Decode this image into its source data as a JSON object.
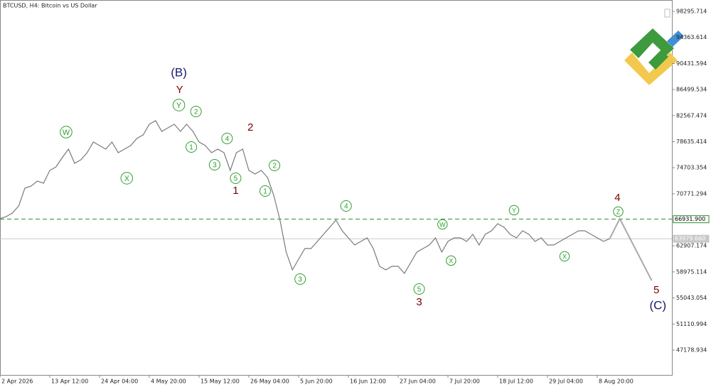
{
  "chart_data": {
    "type": "line",
    "title": "BTCUSD, H4:  Bitcoin vs US Dollar",
    "xlim": [
      0,
      864
    ],
    "xticks": [
      {
        "value": 0,
        "label": "2 Apr 2026"
      },
      {
        "value": 64,
        "label": "13 Apr 12:00"
      },
      {
        "value": 128,
        "label": "24 Apr 04:00"
      },
      {
        "value": 192,
        "label": "4 May 20:00"
      },
      {
        "value": 256,
        "label": "15 May 12:00"
      },
      {
        "value": 320,
        "label": "26 May 04:00"
      },
      {
        "value": 384,
        "label": "5 Jun 20:00"
      },
      {
        "value": 448,
        "label": "16 Jun 12:00"
      },
      {
        "value": 512,
        "label": "27 Jun 04:00"
      },
      {
        "value": 576,
        "label": "7 Jul 20:00"
      },
      {
        "value": 640,
        "label": "18 Jul 12:00"
      },
      {
        "value": 704,
        "label": "29 Jul 04:00"
      },
      {
        "value": 768,
        "label": "8 Aug 20:00"
      }
    ],
    "ylim": [
      43428,
      100010
    ],
    "yticks": [
      98295.714,
      94363.614,
      90431.594,
      86499.534,
      82567.474,
      78635.414,
      74703.354,
      70771.294,
      62907.174,
      58975.114,
      55043.054,
      51110.994,
      47178.934
    ],
    "x": [
      0,
      8,
      16,
      24,
      32,
      40,
      48,
      56,
      64,
      72,
      80,
      88,
      96,
      104,
      112,
      120,
      128,
      136,
      144,
      152,
      160,
      168,
      176,
      184,
      192,
      200,
      208,
      216,
      224,
      232,
      240,
      248,
      256,
      264,
      272,
      280,
      288,
      296,
      304,
      312,
      320,
      328,
      336,
      344,
      352,
      360,
      368,
      376,
      384,
      392,
      400,
      408,
      416,
      424,
      432,
      440,
      448,
      456,
      464,
      472,
      480,
      488,
      496,
      504,
      512,
      520,
      528,
      536,
      544,
      552,
      560,
      568,
      576,
      584,
      592,
      600,
      608,
      616,
      624,
      632,
      640,
      648,
      656,
      664,
      672,
      680,
      688,
      696,
      704,
      712,
      720,
      728,
      736,
      744,
      752,
      760,
      768,
      776,
      784
    ],
    "series": [
      {
        "name": "BTCUSD",
        "color": "#7a7a7a",
        "values": [
          67005,
          67327,
          67862,
          68934,
          71612,
          71934,
          72685,
          72363,
          74292,
          74827,
          76218,
          77504,
          75367,
          75901,
          76970,
          78578,
          78042,
          77504,
          78578,
          76970,
          77504,
          78042,
          79114,
          79650,
          81257,
          81793,
          80185,
          80721,
          81257,
          80185,
          81257,
          80185,
          78578,
          78042,
          76970,
          77504,
          76970,
          74292,
          76970,
          77504,
          74292,
          73756,
          74292,
          73220,
          70541,
          66790,
          61968,
          59289,
          60897,
          62504,
          62504,
          63576,
          64647,
          65719,
          66790,
          65183,
          64111,
          63040,
          63576,
          64111,
          62504,
          59825,
          59289,
          59825,
          59825,
          58753,
          60361,
          61968,
          62504,
          63040,
          64111,
          61968,
          63576,
          64111,
          64111,
          63576,
          64647,
          63040,
          64647,
          65183,
          66255,
          65719,
          64647,
          64111,
          65183,
          64647,
          63576,
          64111,
          63040,
          63040,
          63576,
          64111,
          64647,
          65183,
          65183,
          64647,
          64111,
          63576,
          63979.66
        ]
      }
    ],
    "forecast": {
      "color": "#aaaaaa",
      "x": [
        784,
        797,
        838
      ],
      "values": [
        63979.66,
        67000,
        57680
      ]
    },
    "levels": [
      {
        "value": 66931.9,
        "label": "66931.900",
        "color": "#2e8b2e",
        "dashed": true
      },
      {
        "value": 63979.66,
        "label": "63979.660",
        "color": "#c8c8c8",
        "dashed": false
      }
    ],
    "annotations": [
      {
        "text": "(B)",
        "x": 230,
        "y": 89080,
        "color": "#1a1a6e",
        "size": 17,
        "circled": false
      },
      {
        "text": "Y",
        "x": 231,
        "y": 86508,
        "color": "#7a0000",
        "size": 15,
        "circled": false
      },
      {
        "text": "Y",
        "x": 230,
        "y": 84150,
        "color": "#2e9e2e",
        "size": 11,
        "circled": true
      },
      {
        "text": "W",
        "x": 85,
        "y": 80077,
        "color": "#2e9e2e",
        "size": 11,
        "circled": true
      },
      {
        "text": "X",
        "x": 163,
        "y": 73113,
        "color": "#2e9e2e",
        "size": 11,
        "circled": true
      },
      {
        "text": "2",
        "x": 252,
        "y": 83186,
        "color": "#2e9e2e",
        "size": 10,
        "circled": true
      },
      {
        "text": "1",
        "x": 246,
        "y": 77828,
        "color": "#2e9e2e",
        "size": 10,
        "circled": true
      },
      {
        "text": "3",
        "x": 276,
        "y": 75149,
        "color": "#2e9e2e",
        "size": 10,
        "circled": true
      },
      {
        "text": "4",
        "x": 292,
        "y": 79114,
        "color": "#2e9e2e",
        "size": 10,
        "circled": true
      },
      {
        "text": "5",
        "x": 303,
        "y": 73113,
        "color": "#2e9e2e",
        "size": 10,
        "circled": true
      },
      {
        "text": "1",
        "x": 303,
        "y": 71291,
        "color": "#7a0000",
        "size": 15,
        "circled": false
      },
      {
        "text": "2",
        "x": 322,
        "y": 80828,
        "color": "#7a0000",
        "size": 15,
        "circled": false
      },
      {
        "text": "2",
        "x": 353,
        "y": 75041,
        "color": "#2e9e2e",
        "size": 10,
        "circled": true
      },
      {
        "text": "1",
        "x": 341,
        "y": 71183,
        "color": "#2e9e2e",
        "size": 10,
        "circled": true
      },
      {
        "text": "3",
        "x": 386,
        "y": 57896,
        "color": "#2e9e2e",
        "size": 10,
        "circled": true
      },
      {
        "text": "4",
        "x": 445,
        "y": 68934,
        "color": "#2e9e2e",
        "size": 10,
        "circled": true
      },
      {
        "text": "5",
        "x": 539,
        "y": 56395,
        "color": "#2e9e2e",
        "size": 10,
        "circled": true
      },
      {
        "text": "3",
        "x": 539,
        "y": 54466,
        "color": "#7a0000",
        "size": 15,
        "circled": false
      },
      {
        "text": "W",
        "x": 569,
        "y": 66146,
        "color": "#2e9e2e",
        "size": 9,
        "circled": true
      },
      {
        "text": "X",
        "x": 580,
        "y": 60682,
        "color": "#2e9e2e",
        "size": 9,
        "circled": true
      },
      {
        "text": "Y",
        "x": 661,
        "y": 68290,
        "color": "#2e9e2e",
        "size": 9,
        "circled": true
      },
      {
        "text": "X",
        "x": 726,
        "y": 61325,
        "color": "#2e9e2e",
        "size": 9,
        "circled": true
      },
      {
        "text": "Z",
        "x": 795,
        "y": 68076,
        "color": "#2e9e2e",
        "size": 9,
        "circled": true
      },
      {
        "text": "4",
        "x": 794,
        "y": 70219,
        "color": "#7a0000",
        "size": 15,
        "circled": false
      },
      {
        "text": "5",
        "x": 844,
        "y": 56288,
        "color": "#7a0000",
        "size": 15,
        "circled": false
      },
      {
        "text": "(C)",
        "x": 846,
        "y": 53931,
        "color": "#1a1a6e",
        "size": 17,
        "circled": false
      }
    ]
  }
}
